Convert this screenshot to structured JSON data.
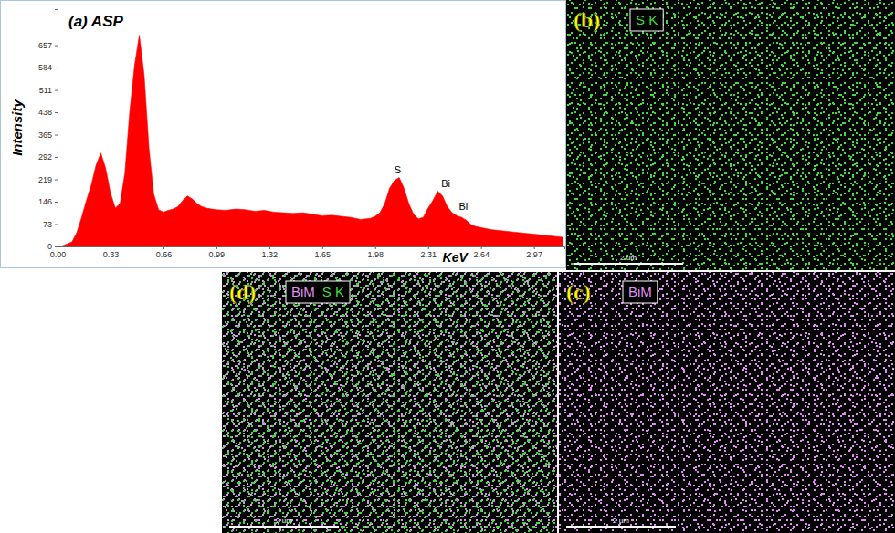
{
  "chart_data": {
    "type": "area",
    "title": "(a) ASP",
    "x_label": "KeV",
    "y_label": "Intensity",
    "color": "#ff0000",
    "x": [
      0,
      0.03,
      0.06,
      0.09,
      0.12,
      0.15,
      0.18,
      0.21,
      0.24,
      0.27,
      0.3,
      0.33,
      0.36,
      0.39,
      0.42,
      0.45,
      0.48,
      0.51,
      0.54,
      0.57,
      0.6,
      0.63,
      0.66,
      0.69,
      0.72,
      0.75,
      0.78,
      0.81,
      0.84,
      0.87,
      0.9,
      0.93,
      0.96,
      0.99,
      1.05,
      1.11,
      1.17,
      1.23,
      1.29,
      1.35,
      1.41,
      1.47,
      1.53,
      1.59,
      1.65,
      1.71,
      1.77,
      1.83,
      1.89,
      1.95,
      1.98,
      2.01,
      2.04,
      2.07,
      2.1,
      2.13,
      2.16,
      2.19,
      2.22,
      2.25,
      2.28,
      2.31,
      2.34,
      2.37,
      2.4,
      2.43,
      2.46,
      2.49,
      2.52,
      2.55,
      2.58,
      2.61,
      2.7,
      2.79,
      2.88,
      2.97,
      3.06,
      3.15
    ],
    "values": [
      0,
      2,
      8,
      15,
      45,
      95,
      150,
      200,
      265,
      305,
      255,
      175,
      125,
      140,
      240,
      440,
      590,
      690,
      560,
      320,
      170,
      120,
      112,
      118,
      122,
      130,
      150,
      165,
      155,
      140,
      130,
      125,
      122,
      120,
      118,
      122,
      120,
      115,
      118,
      112,
      110,
      108,
      110,
      105,
      100,
      102,
      98,
      95,
      88,
      92,
      98,
      110,
      140,
      190,
      215,
      225,
      190,
      140,
      105,
      90,
      95,
      125,
      150,
      180,
      165,
      130,
      110,
      100,
      95,
      85,
      70,
      65,
      55,
      50,
      45,
      40,
      35,
      30
    ],
    "xlim": [
      0,
      3.16
    ],
    "ylim": [
      0,
      775
    ],
    "xticks": [
      {
        "value": 0,
        "label": "0.00"
      },
      0.33,
      0.66,
      0.99,
      1.32,
      1.65,
      1.98,
      2.31,
      2.64,
      2.97
    ],
    "yticks": [
      0,
      73,
      146,
      219,
      292,
      365,
      438,
      511,
      584,
      657
    ],
    "grid": false,
    "annotations": [
      {
        "text": "S",
        "x": 2.12,
        "y": 238
      },
      {
        "text": "Bi",
        "x": 2.42,
        "y": 195
      },
      {
        "text": "Bi",
        "x": 2.53,
        "y": 118
      }
    ]
  },
  "maps": [
    {
      "letter": "(b)",
      "layers": [
        {
          "name": "S K",
          "color": "#3ddc3d"
        }
      ],
      "scale_bar": "2 um"
    },
    {
      "letter": "(c)",
      "layers": [
        {
          "name": "BiM",
          "color": "#e08cf0"
        }
      ],
      "scale_bar": "2 um"
    },
    {
      "letter": "(d)",
      "layers": [
        {
          "name": "BiM",
          "color": "#e08cf0"
        },
        {
          "name": "S K",
          "color": "#3ddc3d"
        }
      ],
      "scale_bar": "2 um"
    }
  ]
}
